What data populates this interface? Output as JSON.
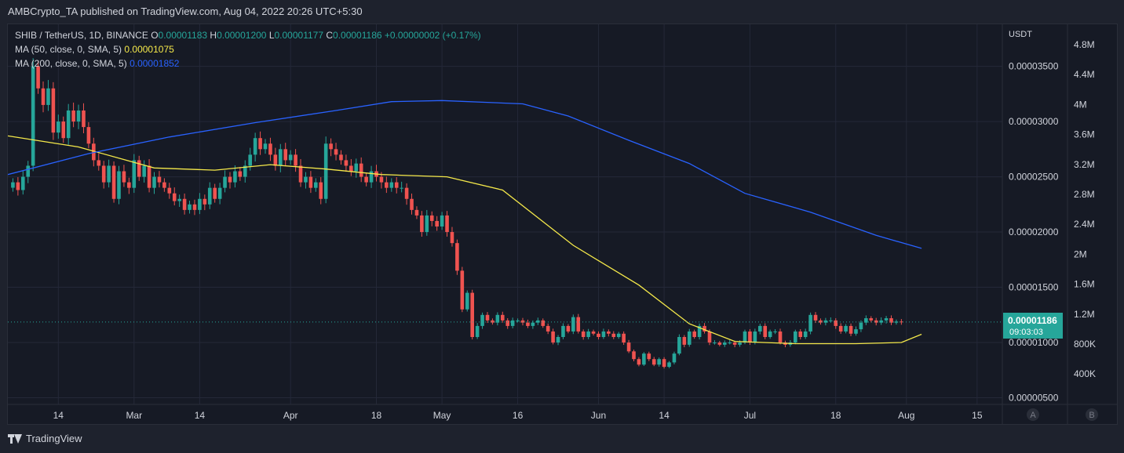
{
  "header": {
    "publisher": "AMBCrypto_TA published on TradingView.com, Aug 04, 2022 20:26 UTC+5:30"
  },
  "legend": {
    "symbol": "SHIB / TetherUS, 1D, BINANCE",
    "ohlc": [
      {
        "label": "O",
        "value": "0.00001183"
      },
      {
        "label": "H",
        "value": "0.00001200"
      },
      {
        "label": "L",
        "value": "0.00001177"
      },
      {
        "label": "C",
        "value": "0.00001186"
      }
    ],
    "change": "+0.00000002 (+0.17%)",
    "ma50_label": "MA (50, close, 0, SMA, 5)",
    "ma50_value": "0.00001075",
    "ma200_label": "MA (200, close, 0, SMA, 5)",
    "ma200_value": "0.00001852"
  },
  "axis": {
    "currency": "USDT",
    "price_badge_value": "0.00001186",
    "price_badge_timer": "09:03:03",
    "scale_buttons": [
      "A",
      "B"
    ]
  },
  "colors": {
    "up": "#26a69a",
    "down": "#ef5350",
    "ma50": "#f5e94a",
    "ma200": "#2962ff",
    "background": "#161a25"
  },
  "footer": {
    "brand": "TradingView"
  },
  "chart_data": {
    "type": "candlestick",
    "y_axis_right": {
      "ticks": [
        {
          "value": 5e-06,
          "label": "0.00000500"
        },
        {
          "value": 1e-05,
          "label": "0.00001000"
        },
        {
          "value": 1.5e-05,
          "label": "0.00001500"
        },
        {
          "value": 2e-05,
          "label": "0.00002000"
        },
        {
          "value": 2.5e-05,
          "label": "0.00002500"
        },
        {
          "value": 3e-05,
          "label": "0.00003000"
        },
        {
          "value": 3.5e-05,
          "label": "0.00003500"
        }
      ],
      "range": [
        4.4e-06,
        3.88e-05
      ]
    },
    "volume_axis": {
      "ticks": [
        "4.8M",
        "4.4M",
        "4M",
        "3.6M",
        "3.2M",
        "2.8M",
        "2.4M",
        "2M",
        "1.6M",
        "1.2M",
        "800K",
        "400K"
      ]
    },
    "x_axis": {
      "ticks": [
        {
          "date": "2022-02-14",
          "label": "14"
        },
        {
          "date": "2022-03-01",
          "label": "Mar"
        },
        {
          "date": "2022-03-14",
          "label": "14"
        },
        {
          "date": "2022-04-01",
          "label": "Apr"
        },
        {
          "date": "2022-04-18",
          "label": "18"
        },
        {
          "date": "2022-05-01",
          "label": "May"
        },
        {
          "date": "2022-05-16",
          "label": "16"
        },
        {
          "date": "2022-06-01",
          "label": "Jun"
        },
        {
          "date": "2022-06-14",
          "label": "14"
        },
        {
          "date": "2022-07-01",
          "label": "Jul"
        },
        {
          "date": "2022-07-18",
          "label": "18"
        },
        {
          "date": "2022-08-01",
          "label": "Aug"
        },
        {
          "date": "2022-08-15",
          "label": "15"
        }
      ],
      "range": [
        "2022-02-04",
        "2022-08-20"
      ]
    },
    "last_price": 1.186e-05,
    "candle_start_date": "2022-02-05",
    "closes": [
      2.45e-05,
      2.38e-05,
      2.5e-05,
      2.6e-05,
      3.5e-05,
      3.3e-05,
      3.15e-05,
      3.3e-05,
      2.9e-05,
      3e-05,
      2.85e-05,
      3.1e-05,
      3e-05,
      3.1e-05,
      2.95e-05,
      2.8e-05,
      2.65e-05,
      2.6e-05,
      2.45e-05,
      2.6e-05,
      2.3e-05,
      2.55e-05,
      2.45e-05,
      2.4e-05,
      2.65e-05,
      2.5e-05,
      2.6e-05,
      2.4e-05,
      2.5e-05,
      2.45e-05,
      2.4e-05,
      2.35e-05,
      2.28e-05,
      2.3e-05,
      2.2e-05,
      2.25e-05,
      2.2e-05,
      2.3e-05,
      2.25e-05,
      2.4e-05,
      2.3e-05,
      2.4e-05,
      2.5e-05,
      2.45e-05,
      2.55e-05,
      2.5e-05,
      2.6e-05,
      2.7e-05,
      2.85e-05,
      2.75e-05,
      2.8e-05,
      2.7e-05,
      2.6e-05,
      2.75e-05,
      2.65e-05,
      2.7e-05,
      2.6e-05,
      2.45e-05,
      2.5e-05,
      2.4e-05,
      2.45e-05,
      2.3e-05,
      2.8e-05,
      2.75e-05,
      2.7e-05,
      2.65e-05,
      2.6e-05,
      2.55e-05,
      2.62e-05,
      2.5e-05,
      2.45e-05,
      2.55e-05,
      2.5e-05,
      2.45e-05,
      2.4e-05,
      2.45e-05,
      2.4e-05,
      2.4e-05,
      2.3e-05,
      2.2e-05,
      2.15e-05,
      2e-05,
      2.15e-05,
      2.1e-05,
      2.05e-05,
      2.15e-05,
      2e-05,
      1.9e-05,
      1.65e-05,
      1.3e-05,
      1.45e-05,
      1.05e-05,
      1.15e-05,
      1.25e-05,
      1.2e-05,
      1.18e-05,
      1.25e-05,
      1.2e-05,
      1.15e-05,
      1.2e-05,
      1.2e-05,
      1.18e-05,
      1.15e-05,
      1.18e-05,
      1.2e-05,
      1.15e-05,
      1.1e-05,
      1e-05,
      1.05e-05,
      1.15e-05,
      1.1e-05,
      1.23e-05,
      1.1e-05,
      1.05e-05,
      1.1e-05,
      1.08e-05,
      1.05e-05,
      1.1e-05,
      1.08e-05,
      1.05e-05,
      1.08e-05,
      1e-05,
      9.2e-06,
      8.5e-06,
      8e-06,
      9e-06,
      8.5e-06,
      8e-06,
      8.5e-06,
      7.8e-06,
      8.2e-06,
      9e-06,
      1.05e-05,
      9.8e-06,
      1.1e-05,
      1.05e-05,
      1.15e-05,
      1.1e-05,
      1e-05,
      1e-05,
      9.8e-06,
      1e-05,
      1e-05,
      9.8e-06,
      1e-05,
      1.1e-05,
      1e-05,
      1.1e-05,
      1.15e-05,
      1.05e-05,
      1.1e-05,
      1.1e-05,
      1e-05,
      9.8e-06,
      1e-05,
      1.1e-05,
      1.05e-05,
      1.1e-05,
      1.25e-05,
      1.2e-05,
      1.18e-05,
      1.2e-05,
      1.2e-05,
      1.15e-05,
      1.1e-05,
      1.15e-05,
      1.08e-05,
      1.12e-05,
      1.18e-05,
      1.22e-05,
      1.2e-05,
      1.18e-05,
      1.2e-05,
      1.22e-05,
      1.18e-05,
      1.19e-05,
      1.186e-05
    ],
    "ma50": [
      {
        "date": "2022-02-04",
        "value": 2.87e-05
      },
      {
        "date": "2022-02-18",
        "value": 2.77e-05
      },
      {
        "date": "2022-03-05",
        "value": 2.58e-05
      },
      {
        "date": "2022-03-17",
        "value": 2.56e-05
      },
      {
        "date": "2022-03-28",
        "value": 2.61e-05
      },
      {
        "date": "2022-04-08",
        "value": 2.57e-05
      },
      {
        "date": "2022-04-19",
        "value": 2.52e-05
      },
      {
        "date": "2022-05-02",
        "value": 2.5e-05
      },
      {
        "date": "2022-05-13",
        "value": 2.38e-05
      },
      {
        "date": "2022-05-27",
        "value": 1.88e-05
      },
      {
        "date": "2022-06-09",
        "value": 1.52e-05
      },
      {
        "date": "2022-06-19",
        "value": 1.17e-05
      },
      {
        "date": "2022-06-28",
        "value": 1.01e-05
      },
      {
        "date": "2022-07-10",
        "value": 9.9e-06
      },
      {
        "date": "2022-07-22",
        "value": 9.9e-06
      },
      {
        "date": "2022-07-31",
        "value": 1e-05
      },
      {
        "date": "2022-08-04",
        "value": 1.075e-05
      }
    ],
    "ma200": [
      {
        "date": "2022-02-04",
        "value": 2.52e-05
      },
      {
        "date": "2022-02-20",
        "value": 2.71e-05
      },
      {
        "date": "2022-03-08",
        "value": 2.86e-05
      },
      {
        "date": "2022-03-25",
        "value": 2.99e-05
      },
      {
        "date": "2022-04-10",
        "value": 3.1e-05
      },
      {
        "date": "2022-04-21",
        "value": 3.18e-05
      },
      {
        "date": "2022-05-01",
        "value": 3.19e-05
      },
      {
        "date": "2022-05-17",
        "value": 3.16e-05
      },
      {
        "date": "2022-05-26",
        "value": 3.05e-05
      },
      {
        "date": "2022-06-07",
        "value": 2.83e-05
      },
      {
        "date": "2022-06-19",
        "value": 2.62e-05
      },
      {
        "date": "2022-06-30",
        "value": 2.35e-05
      },
      {
        "date": "2022-07-13",
        "value": 2.18e-05
      },
      {
        "date": "2022-07-26",
        "value": 1.97e-05
      },
      {
        "date": "2022-08-04",
        "value": 1.852e-05
      }
    ]
  }
}
